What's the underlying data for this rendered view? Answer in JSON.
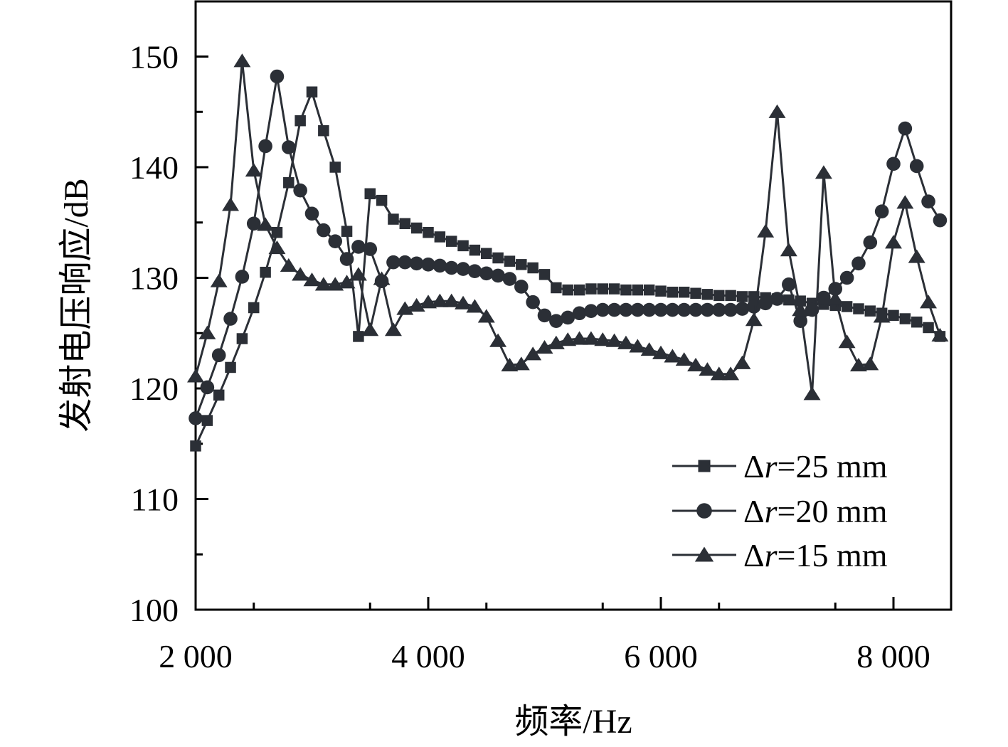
{
  "chart_data": {
    "type": "line",
    "xlabel": "频率/Hz",
    "ylabel": "发射电压响应/dB",
    "xlim": [
      2000,
      8500
    ],
    "ylim": [
      100,
      155
    ],
    "x_ticks": [
      2000,
      4000,
      6000,
      8000
    ],
    "x_tick_labels": [
      "2 000",
      "4 000",
      "6 000",
      "8 000"
    ],
    "y_ticks": [
      100,
      110,
      120,
      130,
      140,
      150
    ],
    "y_tick_labels": [
      "100",
      "110",
      "120",
      "130",
      "140",
      "150"
    ],
    "grid": false,
    "legend_position": "bottom-right",
    "legend_prefix": "Δ",
    "legend_var": "r",
    "series": [
      {
        "name": "Δr=25 mm",
        "legend_value": "=25 mm",
        "marker": "square",
        "points": [
          [
            2000,
            114.8
          ],
          [
            2100,
            117.1
          ],
          [
            2200,
            119.4
          ],
          [
            2300,
            121.9
          ],
          [
            2400,
            124.5
          ],
          [
            2500,
            127.3
          ],
          [
            2600,
            130.5
          ],
          [
            2700,
            134.1
          ],
          [
            2800,
            138.6
          ],
          [
            2900,
            144.2
          ],
          [
            3000,
            146.8
          ],
          [
            3100,
            143.3
          ],
          [
            3200,
            140.0
          ],
          [
            3300,
            134.2
          ],
          [
            3400,
            124.7
          ],
          [
            3500,
            137.6
          ],
          [
            3600,
            137.0
          ],
          [
            3700,
            135.3
          ],
          [
            3800,
            134.9
          ],
          [
            3900,
            134.5
          ],
          [
            4000,
            134.1
          ],
          [
            4100,
            133.7
          ],
          [
            4200,
            133.3
          ],
          [
            4300,
            132.9
          ],
          [
            4400,
            132.5
          ],
          [
            4500,
            132.2
          ],
          [
            4600,
            131.8
          ],
          [
            4700,
            131.5
          ],
          [
            4800,
            131.2
          ],
          [
            4900,
            130.9
          ],
          [
            5000,
            130.3
          ],
          [
            5100,
            129.1
          ],
          [
            5200,
            128.9
          ],
          [
            5300,
            128.9
          ],
          [
            5400,
            129.0
          ],
          [
            5500,
            129.0
          ],
          [
            5600,
            129.0
          ],
          [
            5700,
            128.9
          ],
          [
            5800,
            128.9
          ],
          [
            5900,
            128.9
          ],
          [
            6000,
            128.8
          ],
          [
            6100,
            128.7
          ],
          [
            6200,
            128.7
          ],
          [
            6300,
            128.6
          ],
          [
            6400,
            128.5
          ],
          [
            6500,
            128.4
          ],
          [
            6600,
            128.4
          ],
          [
            6700,
            128.3
          ],
          [
            6800,
            128.3
          ],
          [
            6900,
            128.2
          ],
          [
            7000,
            128.1
          ],
          [
            7100,
            128.0
          ],
          [
            7200,
            127.9
          ],
          [
            7300,
            127.7
          ],
          [
            7400,
            127.6
          ],
          [
            7500,
            127.5
          ],
          [
            7600,
            127.4
          ],
          [
            7700,
            127.2
          ],
          [
            7800,
            127.0
          ],
          [
            7900,
            126.8
          ],
          [
            8000,
            126.6
          ],
          [
            8100,
            126.3
          ],
          [
            8200,
            126.0
          ],
          [
            8300,
            125.5
          ],
          [
            8400,
            124.7
          ]
        ]
      },
      {
        "name": "Δr=20 mm",
        "legend_value": "=20 mm",
        "marker": "circle",
        "points": [
          [
            2000,
            117.3
          ],
          [
            2100,
            120.1
          ],
          [
            2200,
            123.0
          ],
          [
            2300,
            126.3
          ],
          [
            2400,
            130.1
          ],
          [
            2500,
            134.9
          ],
          [
            2600,
            141.9
          ],
          [
            2700,
            148.2
          ],
          [
            2800,
            141.8
          ],
          [
            2900,
            137.9
          ],
          [
            3000,
            135.8
          ],
          [
            3100,
            134.3
          ],
          [
            3200,
            133.3
          ],
          [
            3300,
            131.7
          ],
          [
            3400,
            132.8
          ],
          [
            3500,
            132.6
          ],
          [
            3600,
            129.7
          ],
          [
            3700,
            131.4
          ],
          [
            3800,
            131.4
          ],
          [
            3900,
            131.3
          ],
          [
            4000,
            131.2
          ],
          [
            4100,
            131.1
          ],
          [
            4200,
            130.9
          ],
          [
            4300,
            130.8
          ],
          [
            4400,
            130.6
          ],
          [
            4500,
            130.4
          ],
          [
            4600,
            130.2
          ],
          [
            4700,
            129.9
          ],
          [
            4800,
            129.2
          ],
          [
            4900,
            127.8
          ],
          [
            5000,
            126.6
          ],
          [
            5100,
            126.1
          ],
          [
            5200,
            126.4
          ],
          [
            5300,
            126.8
          ],
          [
            5400,
            127.0
          ],
          [
            5500,
            127.1
          ],
          [
            5600,
            127.1
          ],
          [
            5700,
            127.1
          ],
          [
            5800,
            127.1
          ],
          [
            5900,
            127.1
          ],
          [
            6000,
            127.1
          ],
          [
            6100,
            127.1
          ],
          [
            6200,
            127.1
          ],
          [
            6300,
            127.1
          ],
          [
            6400,
            127.1
          ],
          [
            6500,
            127.1
          ],
          [
            6600,
            127.1
          ],
          [
            6700,
            127.2
          ],
          [
            6800,
            127.4
          ],
          [
            6900,
            127.7
          ],
          [
            7000,
            128.1
          ],
          [
            7100,
            129.4
          ],
          [
            7200,
            126.1
          ],
          [
            7300,
            127.1
          ],
          [
            7400,
            128.2
          ],
          [
            7500,
            129.0
          ],
          [
            7600,
            130.0
          ],
          [
            7700,
            131.3
          ],
          [
            7800,
            133.2
          ],
          [
            7900,
            136.0
          ],
          [
            8000,
            140.3
          ],
          [
            8100,
            143.5
          ],
          [
            8200,
            140.1
          ],
          [
            8300,
            136.9
          ],
          [
            8400,
            135.2
          ]
        ]
      },
      {
        "name": "Δr=15 mm",
        "legend_value": "=15 mm",
        "marker": "triangle",
        "points": [
          [
            2000,
            121.1
          ],
          [
            2100,
            125.0
          ],
          [
            2200,
            129.7
          ],
          [
            2300,
            136.6
          ],
          [
            2400,
            149.6
          ],
          [
            2500,
            139.7
          ],
          [
            2600,
            134.8
          ],
          [
            2700,
            132.7
          ],
          [
            2800,
            131.1
          ],
          [
            2900,
            130.3
          ],
          [
            3000,
            129.8
          ],
          [
            3100,
            129.4
          ],
          [
            3200,
            129.4
          ],
          [
            3300,
            129.6
          ],
          [
            3400,
            130.3
          ],
          [
            3500,
            125.3
          ],
          [
            3600,
            129.9
          ],
          [
            3700,
            125.3
          ],
          [
            3800,
            127.2
          ],
          [
            3900,
            127.5
          ],
          [
            4000,
            127.8
          ],
          [
            4100,
            127.9
          ],
          [
            4200,
            127.9
          ],
          [
            4300,
            127.7
          ],
          [
            4400,
            127.4
          ],
          [
            4500,
            126.5
          ],
          [
            4600,
            124.3
          ],
          [
            4700,
            122.1
          ],
          [
            4800,
            122.2
          ],
          [
            4900,
            123.1
          ],
          [
            5000,
            123.7
          ],
          [
            5100,
            124.1
          ],
          [
            5200,
            124.4
          ],
          [
            5300,
            124.5
          ],
          [
            5400,
            124.5
          ],
          [
            5500,
            124.4
          ],
          [
            5600,
            124.3
          ],
          [
            5700,
            124.1
          ],
          [
            5800,
            123.8
          ],
          [
            5900,
            123.5
          ],
          [
            6000,
            123.2
          ],
          [
            6100,
            122.9
          ],
          [
            6200,
            122.6
          ],
          [
            6300,
            122.1
          ],
          [
            6400,
            121.7
          ],
          [
            6500,
            121.3
          ],
          [
            6600,
            121.3
          ],
          [
            6700,
            122.3
          ],
          [
            6800,
            126.2
          ],
          [
            6900,
            134.2
          ],
          [
            7000,
            145.0
          ],
          [
            7100,
            132.5
          ],
          [
            7200,
            127.1
          ],
          [
            7300,
            119.5
          ],
          [
            7400,
            139.5
          ],
          [
            7500,
            128.1
          ],
          [
            7600,
            124.2
          ],
          [
            7700,
            122.1
          ],
          [
            7800,
            122.2
          ],
          [
            7900,
            126.5
          ],
          [
            8000,
            133.2
          ],
          [
            8100,
            136.8
          ],
          [
            8200,
            131.9
          ],
          [
            8300,
            127.8
          ],
          [
            8400,
            124.8
          ]
        ]
      }
    ]
  },
  "colors": {
    "line": "#2b2f36",
    "axis": "#000000"
  }
}
